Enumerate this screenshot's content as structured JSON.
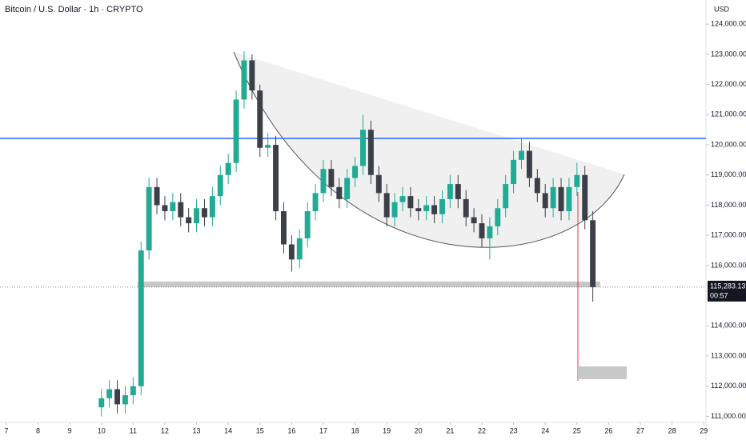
{
  "chart_data": {
    "type": "candlestick",
    "title": "Bitcoin / U.S. Dollar · 1h · CRYPTO",
    "currency": "USD",
    "x": [
      10,
      10.25,
      10.5,
      10.75,
      11,
      11.25,
      11.5,
      11.75,
      12,
      12.25,
      12.5,
      12.75,
      13,
      13.25,
      13.5,
      13.75,
      14,
      14.25,
      14.5,
      14.75,
      15,
      15.25,
      15.5,
      15.75,
      16,
      16.25,
      16.5,
      16.75,
      17,
      17.25,
      17.5,
      17.75,
      18,
      18.25,
      18.5,
      18.75,
      19,
      19.25,
      19.5,
      19.75,
      20,
      20.25,
      20.5,
      20.75,
      21,
      21.25,
      21.5,
      21.75,
      22,
      22.25,
      22.5,
      22.75,
      23,
      23.25,
      23.5,
      23.75,
      24,
      24.25,
      24.5,
      24.75,
      25,
      25.25,
      25.5
    ],
    "open": [
      111300,
      111600,
      111900,
      111400,
      111700,
      112000,
      116500,
      118600,
      118000,
      117800,
      118100,
      117600,
      117400,
      117900,
      117600,
      118300,
      119000,
      119400,
      121500,
      122800,
      121800,
      119900,
      120000,
      117800,
      116700,
      116200,
      116900,
      117800,
      118400,
      119200,
      118600,
      118200,
      118900,
      119300,
      120500,
      119000,
      118400,
      117600,
      118100,
      118300,
      117900,
      117800,
      118000,
      117700,
      118200,
      118700,
      118200,
      117600,
      117400,
      116900,
      117300,
      117900,
      118700,
      119500,
      119800,
      118900,
      118400,
      117900,
      118600,
      117800,
      118600,
      119000,
      117500
    ],
    "high": [
      111900,
      112200,
      112200,
      112000,
      112300,
      116800,
      118900,
      118900,
      118300,
      118400,
      118400,
      117900,
      118200,
      118200,
      118600,
      119300,
      119700,
      121800,
      123100,
      123000,
      122000,
      120400,
      120300,
      118100,
      117000,
      117200,
      118100,
      118700,
      119500,
      119500,
      118900,
      119200,
      119600,
      121000,
      120800,
      119300,
      118700,
      118400,
      118600,
      118600,
      118200,
      118300,
      118300,
      118500,
      119000,
      119000,
      118500,
      117900,
      117700,
      117600,
      118200,
      119000,
      119800,
      120200,
      120100,
      119200,
      118700,
      118900,
      118900,
      118900,
      119400,
      119300,
      117800
    ],
    "low": [
      111000,
      111300,
      111100,
      111100,
      111400,
      111700,
      116200,
      117700,
      117500,
      117500,
      117300,
      117100,
      117100,
      117300,
      117300,
      118000,
      118700,
      119100,
      121200,
      121500,
      119600,
      119600,
      117500,
      116400,
      115800,
      115900,
      116600,
      117500,
      118100,
      118300,
      117900,
      117900,
      118600,
      119000,
      118700,
      118100,
      117300,
      117300,
      117800,
      117600,
      117500,
      117500,
      117400,
      117400,
      117900,
      117900,
      117300,
      117100,
      116600,
      116200,
      117000,
      117600,
      118400,
      119200,
      118600,
      118100,
      117600,
      117600,
      117500,
      117500,
      118300,
      117200,
      114800
    ],
    "close": [
      111600,
      111900,
      111400,
      111700,
      112000,
      116500,
      118600,
      118000,
      117800,
      118100,
      117600,
      117400,
      117900,
      117600,
      118300,
      119000,
      119400,
      121500,
      122800,
      121800,
      119900,
      120000,
      117800,
      116700,
      116200,
      116900,
      117800,
      118400,
      119200,
      118600,
      118200,
      118900,
      119300,
      120500,
      119000,
      118400,
      117600,
      118100,
      118300,
      117900,
      117800,
      118000,
      117700,
      118200,
      118700,
      118200,
      117600,
      117400,
      116900,
      117300,
      117900,
      118700,
      119500,
      119800,
      118900,
      118400,
      117900,
      118600,
      117800,
      118600,
      119000,
      117500,
      115283.13
    ],
    "up_color": "#22ab94",
    "down_color": "#3d3f48",
    "xlim": [
      6.8,
      29.07
    ],
    "xticks": [
      7,
      8,
      9,
      10,
      11,
      12,
      13,
      14,
      15,
      16,
      17,
      18,
      19,
      20,
      21,
      22,
      23,
      24,
      25,
      26,
      27,
      28,
      29
    ],
    "ylim": [
      110800,
      124800
    ],
    "yticks": [
      {
        "value": 124000,
        "label": "124,000.00"
      },
      {
        "value": 123000,
        "label": "123,000.00"
      },
      {
        "value": 122000,
        "label": "122,000.00"
      },
      {
        "value": 121000,
        "label": "121,000.00"
      },
      {
        "value": 120000,
        "label": "120,000.00"
      },
      {
        "value": 119000,
        "label": "119,000.00"
      },
      {
        "value": 118000,
        "label": "118,000.00"
      },
      {
        "value": 117000,
        "label": "117,000.00"
      },
      {
        "value": 116000,
        "label": "116,000.00"
      },
      {
        "value": 114000,
        "label": "114,000.00"
      },
      {
        "value": 113000,
        "label": "113,000.00"
      },
      {
        "value": 112000,
        "label": "112,000.00"
      },
      {
        "value": 111000,
        "label": "111,000.00"
      }
    ],
    "last_price": {
      "value": 115283.13,
      "label": "115,283.13"
    },
    "countdown": "00:57",
    "grid": false
  }
}
